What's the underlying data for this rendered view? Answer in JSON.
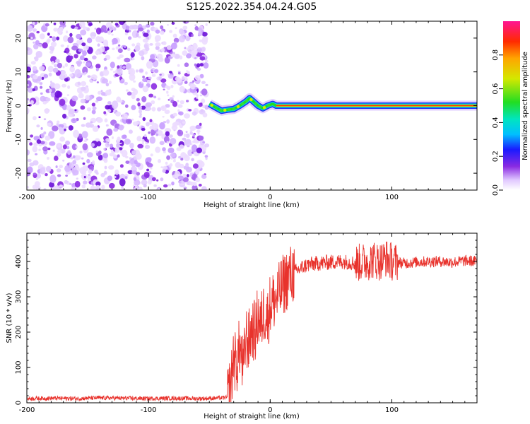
{
  "title": "S125.2022.354.04.24.G05",
  "chart_data": [
    {
      "type": "heatmap",
      "name": "spectrogram",
      "xlabel": "Height of straight line (km)",
      "ylabel": "Frequency (Hz)",
      "xlim": [
        -200,
        170
      ],
      "ylim": [
        -25,
        25
      ],
      "xticks": [
        -200,
        -100,
        0,
        100
      ],
      "yticks": [
        -20,
        -10,
        0,
        10,
        20
      ],
      "noise_region_x": [
        -200,
        -52
      ],
      "signal_track": {
        "x": [
          -50,
          -45,
          -40,
          -35,
          -30,
          -25,
          -20,
          -17,
          -14,
          -10,
          -6,
          -2,
          2,
          5,
          50,
          100,
          140,
          170
        ],
        "freq": [
          0.5,
          -0.5,
          -1.5,
          -1.2,
          -1.0,
          0.0,
          1.2,
          2.2,
          1.3,
          0.0,
          -0.8,
          0.0,
          0.5,
          0.0,
          0.0,
          0.0,
          0.0,
          0.0
        ]
      },
      "colorbar": {
        "label": "Normalized spectral amplitude",
        "range": [
          0,
          1
        ],
        "ticks": [
          0.0,
          0.2,
          0.4,
          0.6,
          0.8
        ],
        "tick_labels": [
          "0.0",
          "0.2",
          "0.4",
          "0.6",
          "0.8"
        ]
      }
    },
    {
      "type": "line",
      "name": "snr",
      "xlabel": "Height of straight line (km)",
      "ylabel": "SNR (10 * v/v)",
      "xlim": [
        -200,
        170
      ],
      "ylim": [
        0,
        480
      ],
      "xticks": [
        -200,
        -100,
        0,
        100
      ],
      "yticks": [
        0,
        100,
        200,
        300,
        400
      ],
      "color": "#e8322c",
      "series": [
        {
          "name": "SNR",
          "x": [
            -200,
            -180,
            -160,
            -140,
            -120,
            -100,
            -80,
            -60,
            -45,
            -35,
            -32,
            -30,
            -28,
            -25,
            -22,
            -20,
            -18,
            -15,
            -12,
            -10,
            -8,
            -5,
            -2,
            0,
            3,
            6,
            10,
            15,
            20,
            25,
            30,
            40,
            50,
            60,
            70,
            80,
            85,
            90,
            95,
            100,
            110,
            120,
            130,
            140,
            150,
            160,
            170
          ],
          "values": [
            12,
            13,
            12,
            14,
            13,
            12,
            13,
            12,
            13,
            15,
            60,
            140,
            100,
            160,
            90,
            190,
            170,
            210,
            200,
            250,
            220,
            260,
            240,
            280,
            290,
            300,
            330,
            355,
            370,
            380,
            390,
            395,
            398,
            400,
            395,
            400,
            405,
            400,
            410,
            400,
            395,
            398,
            400,
            400,
            398,
            402,
            400
          ]
        }
      ]
    }
  ]
}
